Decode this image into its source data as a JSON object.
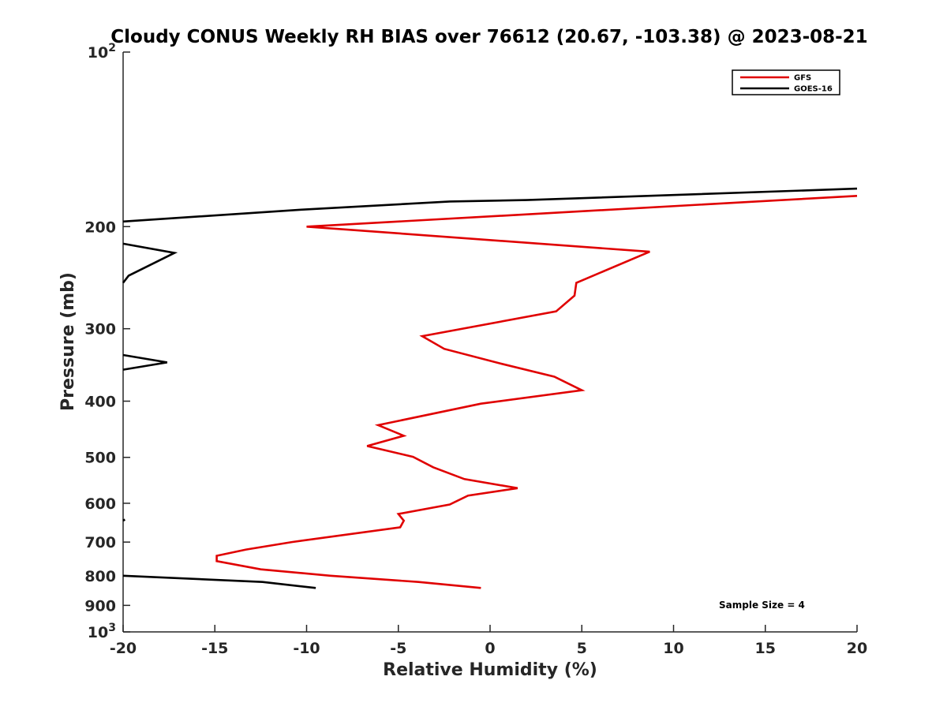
{
  "chart_data": {
    "type": "line",
    "title": "Cloudy CONUS Weekly RH BIAS over 76612 (20.67, -103.38) @ 2023-08-21",
    "xlabel": "Relative Humidity (%)",
    "ylabel": "Pressure (mb)",
    "xlim": [
      -20,
      20
    ],
    "ylim": [
      100,
      1000
    ],
    "yscale": "log",
    "y_reversed": true,
    "xticks": [
      -20,
      -15,
      -10,
      -5,
      0,
      5,
      10,
      15,
      20
    ],
    "xtick_labels": [
      "-20",
      "-15",
      "-10",
      "-5",
      "0",
      "5",
      "10",
      "15",
      "20"
    ],
    "yticks": [
      {
        "value": 100,
        "base": "10",
        "exp": "2"
      },
      {
        "value": 200,
        "label": "200"
      },
      {
        "value": 300,
        "label": "300"
      },
      {
        "value": 400,
        "label": "400"
      },
      {
        "value": 500,
        "label": "500"
      },
      {
        "value": 600,
        "label": "600"
      },
      {
        "value": 700,
        "label": "700"
      },
      {
        "value": 800,
        "label": "800"
      },
      {
        "value": 900,
        "label": "900"
      },
      {
        "value": 1000,
        "base": "10",
        "exp": "3"
      }
    ],
    "legend_position": "top-right",
    "annotation": "Sample Size = 4",
    "series": [
      {
        "name": "GFS",
        "color": "#e00000",
        "points": [
          [
            20.0,
            177
          ],
          [
            -10.0,
            200
          ],
          [
            8.7,
            221
          ],
          [
            4.7,
            250
          ],
          [
            4.6,
            263
          ],
          [
            3.6,
            280
          ],
          [
            -3.7,
            309
          ],
          [
            -2.5,
            325
          ],
          [
            0.5,
            344
          ],
          [
            3.5,
            363
          ],
          [
            5.0,
            383
          ],
          [
            -0.5,
            404
          ],
          [
            -6.1,
            440
          ],
          [
            -4.7,
            459
          ],
          [
            -6.7,
            478
          ],
          [
            -4.2,
            499
          ],
          [
            -3.1,
            520
          ],
          [
            -1.4,
            545
          ],
          [
            1.5,
            565
          ],
          [
            -1.2,
            582
          ],
          [
            -2.2,
            603
          ],
          [
            -5.0,
            626
          ],
          [
            -4.7,
            643
          ],
          [
            -4.9,
            660
          ],
          [
            -10.8,
            700
          ],
          [
            -13.3,
            721
          ],
          [
            -14.9,
            739
          ],
          [
            -14.9,
            755
          ],
          [
            -12.5,
            780
          ],
          [
            -8.7,
            800
          ],
          [
            -3.9,
            820
          ],
          [
            -0.5,
            840
          ]
        ]
      },
      {
        "name": "GOES-16",
        "color": "#000000",
        "segments": [
          [
            [
              20.0,
              172
            ],
            [
              2.0,
              180
            ],
            [
              -2.2,
              181
            ],
            [
              -10.3,
              187
            ],
            [
              -20.0,
              196
            ]
          ],
          [
            [
              -20.0,
              214
            ],
            [
              -17.2,
              222
            ],
            [
              -19.7,
              243
            ],
            [
              -20.0,
              250
            ]
          ],
          [
            [
              -20.0,
              333
            ],
            [
              -17.6,
              343
            ],
            [
              -20.0,
              353
            ]
          ],
          [
            [
              -19.9,
              640
            ],
            [
              -20.0,
              643
            ]
          ],
          [
            [
              -20.0,
              800
            ],
            [
              -12.4,
              820
            ],
            [
              -9.5,
              840
            ]
          ]
        ]
      }
    ]
  }
}
